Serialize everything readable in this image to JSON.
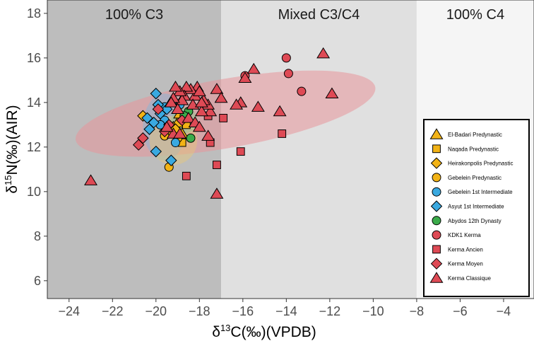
{
  "chart_data": {
    "type": "scatter",
    "xlabel_main": "δ",
    "xlabel_sup": "13",
    "xlabel_rest": "C(‰)(VPDB)",
    "ylabel_main": "δ",
    "ylabel_sup": "15",
    "ylabel_rest": "N(‰)(AIR)",
    "xlim": [
      -25,
      -2.6
    ],
    "ylim": [
      5.2,
      18.6
    ],
    "xticks": [
      -24,
      -22,
      -20,
      -18,
      -16,
      -14,
      -12,
      -10,
      -8,
      -6,
      -4
    ],
    "xtick_labels": [
      "−24",
      "−22",
      "−20",
      "−18",
      "−16",
      "−14",
      "−12",
      "−10",
      "−8",
      "−6",
      "−4"
    ],
    "yticks": [
      6,
      8,
      10,
      12,
      14,
      16,
      18
    ],
    "ytick_labels": [
      "6",
      "8",
      "10",
      "12",
      "14",
      "16",
      "18"
    ],
    "regions": [
      {
        "label": "100% C3",
        "x0": -25,
        "x1": -17,
        "color": "#bdbdbd"
      },
      {
        "label": "Mixed C3/C4",
        "x0": -17,
        "x1": -8,
        "color": "#e0e0e0"
      },
      {
        "label": "100% C4",
        "x0": -8,
        "x1": -2.6,
        "color": "#f5f5f5"
      }
    ],
    "ellipses": [
      {
        "cx": -16.8,
        "cy": 13.5,
        "rx": 7.0,
        "ry": 1.55,
        "angle_deg": 10,
        "color": "#e8959a",
        "opacity": 0.55
      },
      {
        "cx": -19.6,
        "cy": 12.9,
        "rx": 1.0,
        "ry": 1.5,
        "angle_deg": 0,
        "color": "#7fb8dc",
        "opacity": 0.45
      },
      {
        "cx": -19.2,
        "cy": 12.3,
        "rx": 1.1,
        "ry": 1.1,
        "angle_deg": 0,
        "color": "#e8c878",
        "opacity": 0.45
      },
      {
        "cx": -18.7,
        "cy": 13.2,
        "rx": 0.6,
        "ry": 0.6,
        "angle_deg": 0,
        "color": "#8cc78c",
        "opacity": 0.45
      }
    ],
    "legend_position": "bottom-right",
    "series": [
      {
        "name": "El-Badari Predynastic",
        "shape": "triangle",
        "color": "#f2b316",
        "points": [
          [
            -19.0,
            13.1
          ],
          [
            -18.8,
            12.6
          ],
          [
            -19.2,
            12.9
          ],
          [
            -18.9,
            13.5
          ]
        ]
      },
      {
        "name": "Naqada Predynastic",
        "shape": "square",
        "color": "#f2b316",
        "points": [
          [
            -18.8,
            12.2
          ],
          [
            -19.3,
            12.6
          ],
          [
            -18.6,
            13.0
          ]
        ]
      },
      {
        "name": "Heirakonpolis Predynastic",
        "shape": "diamond",
        "color": "#f2b316",
        "points": [
          [
            -20.6,
            13.4
          ],
          [
            -19.1,
            12.8
          ]
        ]
      },
      {
        "name": "Gebelein Predynastic",
        "shape": "circle",
        "color": "#f2b316",
        "points": [
          [
            -19.4,
            11.1
          ],
          [
            -19.0,
            12.4
          ],
          [
            -19.6,
            12.5
          ]
        ]
      },
      {
        "name": "Gebelein 1st Intermediate",
        "shape": "circle",
        "color": "#3aa9e0",
        "points": [
          [
            -19.6,
            13.8
          ],
          [
            -19.6,
            13.2
          ],
          [
            -19.8,
            13.0
          ],
          [
            -19.1,
            12.2
          ],
          [
            -18.9,
            13.9
          ]
        ]
      },
      {
        "name": "Asyut 1st Intermediate",
        "shape": "diamond",
        "color": "#3aa9e0",
        "points": [
          [
            -20.0,
            14.4
          ],
          [
            -19.9,
            13.9
          ],
          [
            -19.8,
            13.5
          ],
          [
            -20.1,
            13.1
          ],
          [
            -20.3,
            12.8
          ],
          [
            -20.0,
            11.8
          ],
          [
            -19.3,
            11.4
          ],
          [
            -20.4,
            13.3
          ],
          [
            -19.5,
            13.7
          ]
        ]
      },
      {
        "name": "Abydos 12th Dynasty",
        "shape": "circle",
        "color": "#3bab4a",
        "points": [
          [
            -18.5,
            13.6
          ],
          [
            -18.4,
            12.4
          ],
          [
            -18.7,
            13.4
          ]
        ]
      },
      {
        "name": "KDK1 Kerma",
        "shape": "circle",
        "color": "#de4a55",
        "points": [
          [
            -14.0,
            16.0
          ],
          [
            -13.9,
            15.3
          ],
          [
            -15.9,
            15.2
          ],
          [
            -13.3,
            14.5
          ]
        ]
      },
      {
        "name": "Kerma Ancien",
        "shape": "square",
        "color": "#de4a55",
        "points": [
          [
            -18.6,
            10.7
          ],
          [
            -17.2,
            11.2
          ],
          [
            -16.1,
            11.8
          ],
          [
            -17.5,
            12.2
          ],
          [
            -14.2,
            12.6
          ],
          [
            -16.9,
            13.3
          ],
          [
            -17.6,
            13.4
          ]
        ]
      },
      {
        "name": "Kerma Moyen",
        "shape": "diamond",
        "color": "#de4a55",
        "points": [
          [
            -20.8,
            12.1
          ],
          [
            -20.6,
            12.4
          ],
          [
            -19.6,
            12.7
          ],
          [
            -19.4,
            13.0
          ],
          [
            -19.9,
            13.7
          ],
          [
            -18.8,
            13.2
          ]
        ]
      },
      {
        "name": "Kerma Classique",
        "shape": "triangle",
        "color": "#de4a55",
        "points": [
          [
            -23.0,
            10.5
          ],
          [
            -17.2,
            9.9
          ],
          [
            -12.3,
            16.2
          ],
          [
            -11.9,
            14.4
          ],
          [
            -15.5,
            15.5
          ],
          [
            -15.3,
            13.8
          ],
          [
            -14.3,
            13.6
          ],
          [
            -16.1,
            14.0
          ],
          [
            -16.3,
            13.9
          ],
          [
            -15.9,
            15.1
          ],
          [
            -17.2,
            14.6
          ],
          [
            -17.0,
            14.2
          ],
          [
            -17.5,
            13.6
          ],
          [
            -17.6,
            13.9
          ],
          [
            -17.8,
            14.1
          ],
          [
            -17.9,
            13.6
          ],
          [
            -18.1,
            14.7
          ],
          [
            -18.2,
            14.3
          ],
          [
            -18.3,
            13.9
          ],
          [
            -18.4,
            14.6
          ],
          [
            -18.6,
            14.7
          ],
          [
            -18.7,
            14.3
          ],
          [
            -18.8,
            14.1
          ],
          [
            -18.9,
            14.5
          ],
          [
            -19.1,
            14.7
          ],
          [
            -19.2,
            14.2
          ],
          [
            -19.3,
            14.0
          ],
          [
            -19.0,
            13.7
          ],
          [
            -18.5,
            13.3
          ],
          [
            -18.2,
            13.1
          ],
          [
            -18.0,
            12.9
          ],
          [
            -17.6,
            12.5
          ],
          [
            -19.2,
            12.6
          ],
          [
            -19.5,
            12.9
          ],
          [
            -18.9,
            12.6
          ],
          [
            -17.9,
            14.0
          ],
          [
            -18.0,
            14.5
          ]
        ]
      }
    ]
  }
}
